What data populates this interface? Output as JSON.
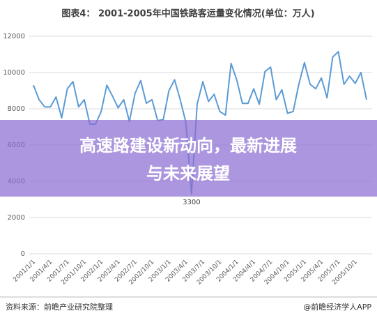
{
  "chart_data": {
    "type": "line",
    "title": "图表4： 2001-2005年中国铁路客运量变化情况(单位：万人)",
    "categories": [
      "2001/1/1",
      null,
      null,
      "2001/4/1",
      null,
      null,
      "2001/7/1",
      null,
      null,
      "2001/10/1",
      null,
      null,
      "2002/1/1",
      null,
      null,
      "2002/4/1",
      null,
      null,
      "2002/7/1",
      null,
      null,
      "2002/10/1",
      null,
      null,
      "2003/1/1",
      null,
      null,
      "2003/4/1",
      null,
      null,
      "2003/7/1",
      null,
      null,
      "2003/10/1",
      null,
      null,
      "2004/1/1",
      null,
      null,
      "2004/4/1",
      null,
      null,
      "2004/7/1",
      null,
      null,
      "2004/10/1",
      null,
      null,
      "2005/1/1",
      null,
      null,
      "2005/4/1",
      null,
      null,
      "2005/7/1",
      null,
      null,
      "2005/10/1",
      null,
      null
    ],
    "values": [
      9300,
      8500,
      8100,
      8100,
      8650,
      7500,
      9100,
      9500,
      8100,
      8500,
      7150,
      7150,
      7850,
      9300,
      8700,
      8050,
      8500,
      7300,
      8850,
      9550,
      8300,
      8500,
      7350,
      7400,
      9000,
      9600,
      8500,
      7250,
      3300,
      8250,
      9500,
      8400,
      8800,
      7850,
      7650,
      10500,
      9600,
      8300,
      8300,
      9100,
      8250,
      10050,
      10300,
      8500,
      9050,
      7750,
      7850,
      9350,
      10550,
      9350,
      9100,
      9700,
      8600,
      10850,
      11150,
      9350,
      9800,
      9400,
      10000,
      8500
    ],
    "color": "#5b9bd5",
    "ylim": [
      0,
      12000
    ],
    "yticks": [
      0,
      2000,
      4000,
      6000,
      8000,
      10000,
      12000
    ],
    "grid": true,
    "annotations": [
      {
        "text": "3300",
        "index": 28
      }
    ]
  },
  "overlay": {
    "lines": [
      "高速路建设新动向，最新进展",
      "与未来展望"
    ]
  },
  "footer": {
    "source": "资料来源：前瞻产业研究院整理",
    "brand": "@前瞻经济学人APP"
  }
}
